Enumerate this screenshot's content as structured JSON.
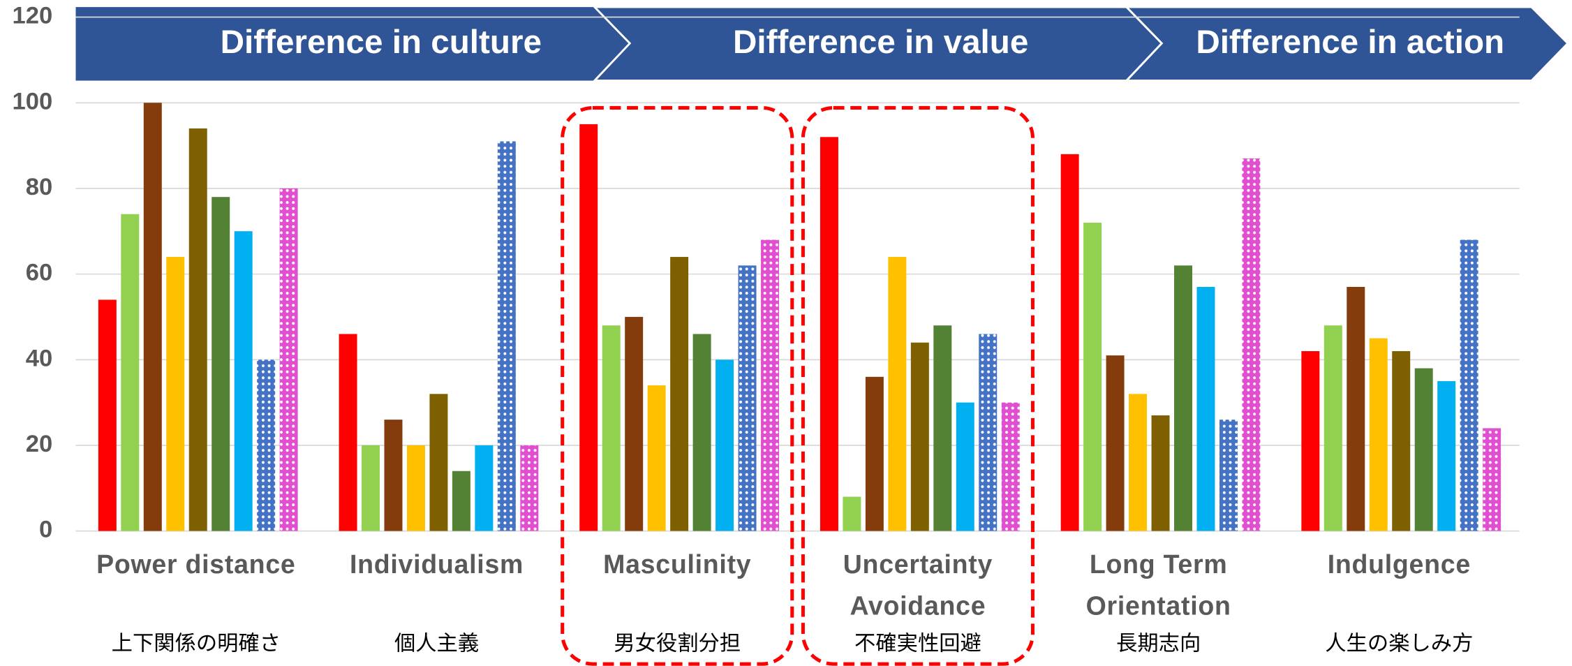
{
  "chart_data": {
    "type": "bar",
    "banner": [
      "Difference in culture",
      "Difference in value",
      "Difference in action"
    ],
    "categories": [
      "Power distance",
      "Individualism",
      "Masculinity",
      "Uncertainty Avoidance",
      "Long Term Orientation",
      "Indulgence"
    ],
    "category_notes": [
      "上下関係の明確さ",
      "個人主義",
      "男女役割分担",
      "不確実性回避",
      "長期志向",
      "人生の楽しみ方"
    ],
    "series": [
      {
        "color": "#ff0000",
        "values": [
          54,
          46,
          95,
          92,
          88,
          42
        ]
      },
      {
        "color": "#92d050",
        "values": [
          74,
          20,
          48,
          8,
          72,
          48
        ]
      },
      {
        "color": "#843c0c",
        "values": [
          100,
          26,
          50,
          36,
          41,
          57
        ]
      },
      {
        "color": "#ffc000",
        "values": [
          64,
          20,
          34,
          64,
          32,
          45
        ]
      },
      {
        "color": "#7f6000",
        "values": [
          94,
          32,
          64,
          44,
          27,
          42
        ]
      },
      {
        "color": "#548235",
        "values": [
          78,
          14,
          46,
          48,
          62,
          38
        ]
      },
      {
        "color": "#00b0f0",
        "values": [
          70,
          20,
          40,
          30,
          57,
          35
        ]
      },
      {
        "color": "#4472c4",
        "pattern": "dots",
        "values": [
          40,
          91,
          62,
          46,
          26,
          68
        ]
      },
      {
        "color": "#e14fd0",
        "pattern": "dots",
        "values": [
          80,
          20,
          68,
          30,
          87,
          24
        ]
      }
    ],
    "ylim": [
      0,
      120
    ],
    "yticks": [
      0,
      20,
      40,
      60,
      80,
      100,
      120
    ],
    "grid": true,
    "highlight_categories": [
      2,
      3
    ]
  }
}
